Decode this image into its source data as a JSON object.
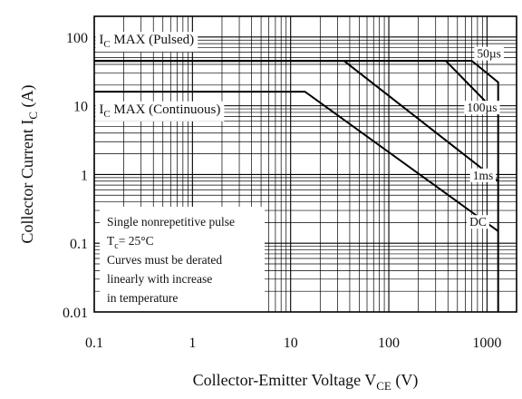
{
  "chart_data": {
    "type": "line",
    "title": "",
    "xlabel": {
      "main": "Collector-Emitter Voltage  V",
      "sub": "CE",
      "unit": " (V)"
    },
    "ylabel": {
      "main": "Collector Current  I",
      "sub": "C",
      "unit": " (A)"
    },
    "xscale": "log",
    "yscale": "log",
    "xlim": [
      0.1,
      2000
    ],
    "ylim": [
      0.01,
      200
    ],
    "grid": true,
    "xticks": [
      {
        "v": 0.1,
        "label": "0.1"
      },
      {
        "v": 1,
        "label": "1"
      },
      {
        "v": 10,
        "label": "10"
      },
      {
        "v": 100,
        "label": "100"
      },
      {
        "v": 1000,
        "label": "1000"
      }
    ],
    "yticks": [
      {
        "v": 0.01,
        "label": "0.01"
      },
      {
        "v": 0.1,
        "label": "0.1"
      },
      {
        "v": 1,
        "label": "1"
      },
      {
        "v": 10,
        "label": "10"
      },
      {
        "v": 100,
        "label": "100"
      }
    ],
    "series": [
      {
        "name": "50µs",
        "points": [
          [
            0.1,
            45
          ],
          [
            700,
            45
          ],
          [
            1300,
            22
          ],
          [
            1300,
            0.01
          ]
        ]
      },
      {
        "name": "100µs",
        "points": [
          [
            0.1,
            45
          ],
          [
            380,
            45
          ],
          [
            1300,
            7.5
          ]
        ]
      },
      {
        "name": "1ms",
        "points": [
          [
            0.1,
            45
          ],
          [
            35,
            45
          ],
          [
            1300,
            0.8
          ]
        ]
      },
      {
        "name": "DC",
        "points": [
          [
            0.1,
            16
          ],
          [
            14,
            16
          ],
          [
            1300,
            0.15
          ]
        ]
      }
    ],
    "annotations": [
      {
        "pre": "I",
        "sub": "C",
        "text": " MAX (Pulsed)",
        "x": 0.112,
        "y": 80
      },
      {
        "pre": "I",
        "sub": "C",
        "text": " MAX (Continuous)",
        "x": 0.112,
        "y": 7.8
      },
      {
        "label": "50µs",
        "x": 1050,
        "y": 50
      },
      {
        "label": "100µs",
        "x": 890,
        "y": 8.2
      },
      {
        "label": "1ms",
        "x": 910,
        "y": 0.85
      },
      {
        "label": "DC",
        "x": 810,
        "y": 0.178
      }
    ],
    "note": {
      "line1": "Single nonrepetitive pulse",
      "tc_pre": "T",
      "tc_sub": "c",
      "tc_rest": "= 25°C",
      "line3": "Curves must be derated",
      "line4": "linearly with increase",
      "line5": "in temperature"
    }
  }
}
